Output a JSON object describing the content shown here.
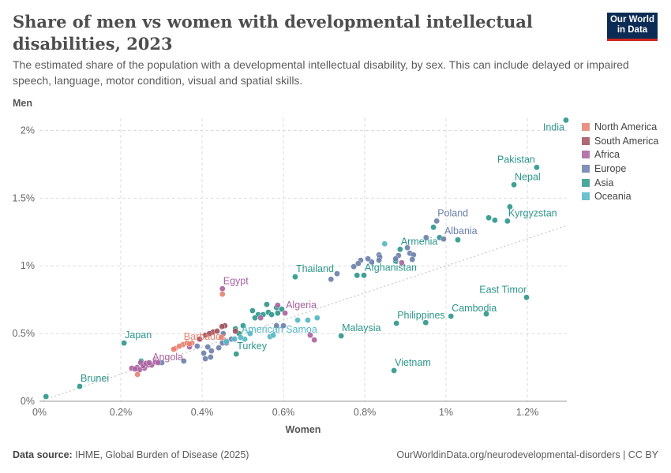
{
  "header": {
    "title": "Share of men vs women with developmental intellectual disabilities, 2023",
    "subtitle": "The estimated share of the population with a developmental intellectual disability, by sex. This can include delayed or impaired speech, language, motor condition, visual and spatial skills.",
    "logo": "Our World in Data"
  },
  "footer": {
    "source_label": "Data source:",
    "source": "IHME, Global Burden of Disease (2025)",
    "url": "OurWorldinData.org/neurodevelopmental-disorders | CC BY"
  },
  "chart_data": {
    "type": "scatter",
    "xlabel": "Women",
    "ylabel": "Men",
    "xlim": [
      0,
      1.297
    ],
    "ylim": [
      0,
      2.09
    ],
    "x_ticks": [
      "0%",
      "0.2%",
      "0.4%",
      "0.6%",
      "0.8%",
      "1%",
      "1.2%"
    ],
    "x_tick_values": [
      0,
      0.2,
      0.4,
      0.6,
      0.8,
      1.0,
      1.2
    ],
    "y_ticks": [
      "0%",
      "0.5%",
      "1%",
      "1.5%",
      "2%"
    ],
    "y_tick_values": [
      0,
      0.5,
      1.0,
      1.5,
      2.0
    ],
    "grid": true,
    "reference_line": "y = x (dotted)",
    "legend_position": "right",
    "regions": [
      {
        "name": "North America",
        "color": "#e5806f"
      },
      {
        "name": "South America",
        "color": "#a04f5c"
      },
      {
        "name": "Africa",
        "color": "#a8609f"
      },
      {
        "name": "Europe",
        "color": "#6a7eaa"
      },
      {
        "name": "Asia",
        "color": "#2b968a"
      },
      {
        "name": "Oceania",
        "color": "#52b6c4"
      }
    ],
    "points": [
      {
        "x": 1.295,
        "y": 2.076,
        "r": "Asia",
        "label": "India"
      },
      {
        "x": 1.223,
        "y": 1.727,
        "r": "Asia",
        "label": "Pakistan"
      },
      {
        "x": 1.167,
        "y": 1.599,
        "r": "Asia",
        "label": "Nepal"
      },
      {
        "x": 1.157,
        "y": 1.436,
        "r": "Asia"
      },
      {
        "x": 1.105,
        "y": 1.355,
        "r": "Asia"
      },
      {
        "x": 1.12,
        "y": 1.337,
        "r": "Asia"
      },
      {
        "x": 1.151,
        "y": 1.331,
        "r": "Asia",
        "label": "Kyrgyzstan"
      },
      {
        "x": 0.969,
        "y": 1.285,
        "r": "Asia"
      },
      {
        "x": 0.984,
        "y": 1.209,
        "r": "Asia"
      },
      {
        "x": 1.029,
        "y": 1.192,
        "r": "Asia"
      },
      {
        "x": 0.887,
        "y": 1.122,
        "r": "Asia",
        "label": "Armenia"
      },
      {
        "x": 0.876,
        "y": 1.035,
        "r": "Asia"
      },
      {
        "x": 0.798,
        "y": 0.93,
        "r": "Asia",
        "label": "Afghanistan"
      },
      {
        "x": 0.781,
        "y": 0.93,
        "r": "Asia"
      },
      {
        "x": 0.629,
        "y": 0.919,
        "r": "Asia",
        "label": "Thailand"
      },
      {
        "x": 1.198,
        "y": 0.767,
        "r": "Asia",
        "label": "East Timor"
      },
      {
        "x": 1.099,
        "y": 0.645,
        "r": "Asia"
      },
      {
        "x": 1.012,
        "y": 0.628,
        "r": "Asia",
        "label": "Cambodia"
      },
      {
        "x": 0.878,
        "y": 0.576,
        "r": "Asia",
        "label": "Philippines"
      },
      {
        "x": 0.95,
        "y": 0.581,
        "r": "Asia"
      },
      {
        "x": 0.742,
        "y": 0.483,
        "r": "Asia",
        "label": "Malaysia"
      },
      {
        "x": 0.872,
        "y": 0.227,
        "r": "Asia",
        "label": "Vietnam"
      },
      {
        "x": 0.208,
        "y": 0.43,
        "r": "Asia",
        "label": "Japan"
      },
      {
        "x": 0.484,
        "y": 0.349,
        "r": "Asia",
        "label": "Turkey"
      },
      {
        "x": 0.099,
        "y": 0.11,
        "r": "Asia",
        "label": "Brunei"
      },
      {
        "x": 0.016,
        "y": 0.035,
        "r": "Asia"
      },
      {
        "x": 0.559,
        "y": 0.715,
        "r": "Asia"
      },
      {
        "x": 0.524,
        "y": 0.669,
        "r": "Asia"
      },
      {
        "x": 0.538,
        "y": 0.64,
        "r": "Asia"
      },
      {
        "x": 0.55,
        "y": 0.64,
        "r": "Asia"
      },
      {
        "x": 0.563,
        "y": 0.657,
        "r": "Asia"
      },
      {
        "x": 0.583,
        "y": 0.692,
        "r": "Asia"
      },
      {
        "x": 0.586,
        "y": 0.651,
        "r": "Asia"
      },
      {
        "x": 0.596,
        "y": 0.68,
        "r": "Asia"
      },
      {
        "x": 0.53,
        "y": 0.616,
        "r": "Asia"
      },
      {
        "x": 0.571,
        "y": 0.64,
        "r": "Asia"
      },
      {
        "x": 0.501,
        "y": 0.558,
        "r": "Asia"
      },
      {
        "x": 0.482,
        "y": 0.535,
        "r": "Asia"
      },
      {
        "x": 0.491,
        "y": 0.5,
        "r": "Asia"
      },
      {
        "x": 0.25,
        "y": 0.297,
        "r": "Asia"
      },
      {
        "x": 0.977,
        "y": 1.331,
        "r": "Europe",
        "label": "Poland"
      },
      {
        "x": 0.994,
        "y": 1.198,
        "r": "Europe",
        "label": "Albania"
      },
      {
        "x": 0.951,
        "y": 1.209,
        "r": "Europe"
      },
      {
        "x": 0.905,
        "y": 1.134,
        "r": "Europe"
      },
      {
        "x": 0.911,
        "y": 1.093,
        "r": "Europe"
      },
      {
        "x": 0.92,
        "y": 1.081,
        "r": "Europe"
      },
      {
        "x": 0.917,
        "y": 1.047,
        "r": "Europe"
      },
      {
        "x": 0.883,
        "y": 1.076,
        "r": "Europe"
      },
      {
        "x": 0.876,
        "y": 1.052,
        "r": "Europe"
      },
      {
        "x": 0.835,
        "y": 1.081,
        "r": "Europe"
      },
      {
        "x": 0.837,
        "y": 1.064,
        "r": "Europe"
      },
      {
        "x": 0.835,
        "y": 1.041,
        "r": "Europe"
      },
      {
        "x": 0.817,
        "y": 1.029,
        "r": "Europe"
      },
      {
        "x": 0.808,
        "y": 1.052,
        "r": "Europe"
      },
      {
        "x": 0.79,
        "y": 1.041,
        "r": "Europe"
      },
      {
        "x": 0.784,
        "y": 1.017,
        "r": "Europe"
      },
      {
        "x": 0.773,
        "y": 0.994,
        "r": "Europe"
      },
      {
        "x": 0.732,
        "y": 0.942,
        "r": "Europe"
      },
      {
        "x": 0.717,
        "y": 0.901,
        "r": "Europe"
      },
      {
        "x": 0.414,
        "y": 0.401,
        "r": "Europe"
      },
      {
        "x": 0.423,
        "y": 0.372,
        "r": "Europe"
      },
      {
        "x": 0.441,
        "y": 0.395,
        "r": "Europe"
      },
      {
        "x": 0.45,
        "y": 0.43,
        "r": "Europe"
      },
      {
        "x": 0.46,
        "y": 0.43,
        "r": "Europe"
      },
      {
        "x": 0.404,
        "y": 0.355,
        "r": "Europe"
      },
      {
        "x": 0.421,
        "y": 0.326,
        "r": "Europe"
      },
      {
        "x": 0.388,
        "y": 0.407,
        "r": "Europe"
      },
      {
        "x": 0.355,
        "y": 0.297,
        "r": "Europe"
      },
      {
        "x": 0.472,
        "y": 0.459,
        "r": "Europe"
      },
      {
        "x": 0.452,
        "y": 0.5,
        "r": "Europe"
      },
      {
        "x": 0.6,
        "y": 0.558,
        "r": "Europe"
      },
      {
        "x": 0.583,
        "y": 0.558,
        "r": "Europe"
      },
      {
        "x": 0.408,
        "y": 0.314,
        "r": "Europe"
      },
      {
        "x": 0.301,
        "y": 0.285,
        "r": "Europe"
      },
      {
        "x": 0.849,
        "y": 1.163,
        "r": "Oceania"
      },
      {
        "x": 0.635,
        "y": 0.599,
        "r": "Oceania"
      },
      {
        "x": 0.66,
        "y": 0.599,
        "r": "Oceania"
      },
      {
        "x": 0.683,
        "y": 0.616,
        "r": "Oceania"
      },
      {
        "x": 0.567,
        "y": 0.477,
        "r": "Oceania"
      },
      {
        "x": 0.575,
        "y": 0.488,
        "r": "Oceania"
      },
      {
        "x": 0.505,
        "y": 0.459,
        "r": "Oceania"
      },
      {
        "x": 0.495,
        "y": 0.471,
        "r": "Oceania",
        "label": "American Samoa"
      },
      {
        "x": 0.48,
        "y": 0.459,
        "r": "Oceania"
      },
      {
        "x": 0.46,
        "y": 0.442,
        "r": "Oceania"
      },
      {
        "x": 0.518,
        "y": 0.5,
        "r": "Oceania"
      },
      {
        "x": 0.45,
        "y": 0.831,
        "r": "Africa",
        "label": "Egypt"
      },
      {
        "x": 0.604,
        "y": 0.651,
        "r": "Africa",
        "label": "Algeria"
      },
      {
        "x": 0.544,
        "y": 0.616,
        "r": "Africa"
      },
      {
        "x": 0.586,
        "y": 0.709,
        "r": "Africa"
      },
      {
        "x": 0.891,
        "y": 1.023,
        "r": "Africa"
      },
      {
        "x": 0.666,
        "y": 0.488,
        "r": "Africa"
      },
      {
        "x": 0.676,
        "y": 0.453,
        "r": "Africa"
      },
      {
        "x": 0.369,
        "y": 0.401,
        "r": "Africa"
      },
      {
        "x": 0.227,
        "y": 0.244,
        "r": "Africa"
      },
      {
        "x": 0.249,
        "y": 0.285,
        "r": "Africa"
      },
      {
        "x": 0.266,
        "y": 0.267,
        "r": "Africa"
      },
      {
        "x": 0.276,
        "y": 0.267,
        "r": "Africa",
        "label": "Angola"
      },
      {
        "x": 0.258,
        "y": 0.244,
        "r": "Africa"
      },
      {
        "x": 0.24,
        "y": 0.25,
        "r": "Africa"
      },
      {
        "x": 0.255,
        "y": 0.262,
        "r": "Africa"
      },
      {
        "x": 0.262,
        "y": 0.28,
        "r": "Africa"
      },
      {
        "x": 0.27,
        "y": 0.285,
        "r": "Africa"
      },
      {
        "x": 0.285,
        "y": 0.29,
        "r": "Africa"
      },
      {
        "x": 0.292,
        "y": 0.285,
        "r": "Africa"
      },
      {
        "x": 0.246,
        "y": 0.232,
        "r": "Africa"
      },
      {
        "x": 0.235,
        "y": 0.238,
        "r": "Africa"
      },
      {
        "x": 0.45,
        "y": 0.791,
        "r": "North America"
      },
      {
        "x": 0.353,
        "y": 0.419,
        "r": "North America",
        "label": "Barbados"
      },
      {
        "x": 0.334,
        "y": 0.39,
        "r": "North America"
      },
      {
        "x": 0.344,
        "y": 0.407,
        "r": "North America"
      },
      {
        "x": 0.363,
        "y": 0.43,
        "r": "North America"
      },
      {
        "x": 0.375,
        "y": 0.43,
        "r": "North America"
      },
      {
        "x": 0.33,
        "y": 0.384,
        "r": "North America"
      },
      {
        "x": 0.241,
        "y": 0.198,
        "r": "North America"
      },
      {
        "x": 0.369,
        "y": 0.424,
        "r": "North America"
      },
      {
        "x": 0.447,
        "y": 0.471,
        "r": "North America"
      },
      {
        "x": 0.456,
        "y": 0.558,
        "r": "South America"
      },
      {
        "x": 0.449,
        "y": 0.552,
        "r": "South America"
      },
      {
        "x": 0.427,
        "y": 0.512,
        "r": "South America"
      },
      {
        "x": 0.408,
        "y": 0.488,
        "r": "South America"
      },
      {
        "x": 0.394,
        "y": 0.459,
        "r": "South America"
      },
      {
        "x": 0.482,
        "y": 0.517,
        "r": "South America"
      },
      {
        "x": 0.437,
        "y": 0.518,
        "r": "South America"
      },
      {
        "x": 0.418,
        "y": 0.5,
        "r": "South America"
      }
    ]
  }
}
